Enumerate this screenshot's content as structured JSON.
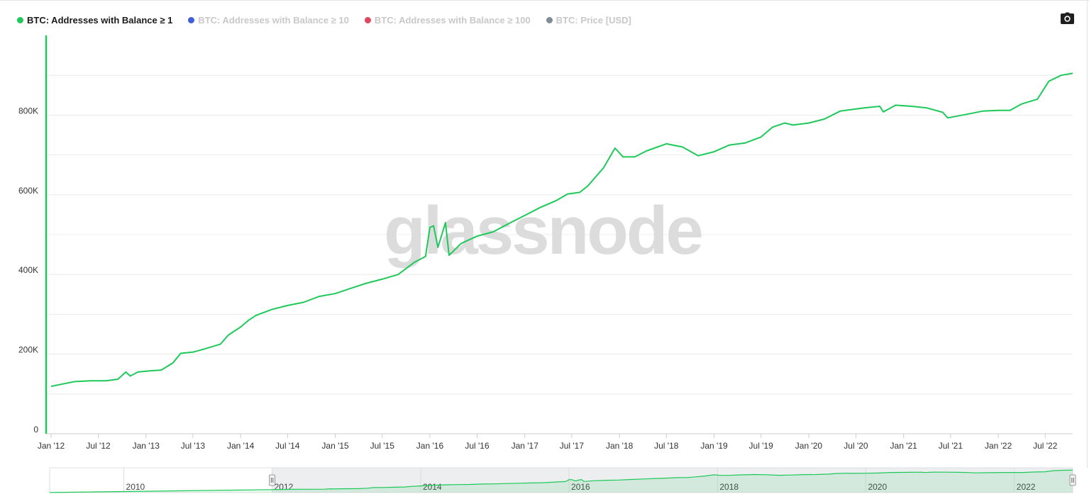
{
  "watermark": "glassnode",
  "legend": [
    {
      "label": "BTC: Addresses with Balance ≥ 1",
      "color": "#1ec95a",
      "active": true
    },
    {
      "label": "BTC: Addresses with Balance ≥ 10",
      "color": "#3e5fd6",
      "active": false
    },
    {
      "label": "BTC: Addresses with Balance ≥ 100",
      "color": "#e0475e",
      "active": false
    },
    {
      "label": "BTC: Price [USD]",
      "color": "#7f8c97",
      "active": false
    }
  ],
  "icons": {
    "screenshot": "camera-icon"
  },
  "chart_data": {
    "type": "line",
    "series": [
      {
        "name": "BTC: Addresses with Balance ≥ 1",
        "color": "#1ec95a",
        "points": [
          [
            "2012-01-01",
            119000
          ],
          [
            "2012-02-15",
            125000
          ],
          [
            "2012-04-01",
            131000
          ],
          [
            "2012-06-01",
            133000
          ],
          [
            "2012-08-01",
            133000
          ],
          [
            "2012-09-15",
            137000
          ],
          [
            "2012-10-15",
            155000
          ],
          [
            "2012-11-01",
            145000
          ],
          [
            "2012-12-01",
            155000
          ],
          [
            "2013-01-15",
            158000
          ],
          [
            "2013-03-01",
            160000
          ],
          [
            "2013-04-15",
            178000
          ],
          [
            "2013-05-15",
            202000
          ],
          [
            "2013-07-01",
            205000
          ],
          [
            "2013-08-15",
            213000
          ],
          [
            "2013-10-15",
            225000
          ],
          [
            "2013-11-15",
            248000
          ],
          [
            "2014-01-01",
            268000
          ],
          [
            "2014-02-01",
            285000
          ],
          [
            "2014-03-01",
            297000
          ],
          [
            "2014-05-01",
            312000
          ],
          [
            "2014-07-01",
            322000
          ],
          [
            "2014-09-01",
            330000
          ],
          [
            "2014-11-01",
            345000
          ],
          [
            "2015-01-01",
            352000
          ],
          [
            "2015-03-01",
            365000
          ],
          [
            "2015-05-01",
            378000
          ],
          [
            "2015-07-01",
            388000
          ],
          [
            "2015-09-01",
            400000
          ],
          [
            "2015-11-01",
            430000
          ],
          [
            "2015-12-15",
            445000
          ],
          [
            "2016-01-01",
            518000
          ],
          [
            "2016-01-15",
            522000
          ],
          [
            "2016-02-01",
            468000
          ],
          [
            "2016-03-01",
            530000
          ],
          [
            "2016-03-15",
            448000
          ],
          [
            "2016-05-01",
            478000
          ],
          [
            "2016-07-01",
            496000
          ],
          [
            "2016-09-01",
            507000
          ],
          [
            "2016-11-01",
            528000
          ],
          [
            "2017-01-01",
            548000
          ],
          [
            "2017-03-01",
            568000
          ],
          [
            "2017-05-01",
            585000
          ],
          [
            "2017-06-15",
            602000
          ],
          [
            "2017-08-01",
            606000
          ],
          [
            "2017-09-01",
            622000
          ],
          [
            "2017-11-01",
            668000
          ],
          [
            "2017-12-15",
            717000
          ],
          [
            "2018-01-15",
            695000
          ],
          [
            "2018-03-01",
            695000
          ],
          [
            "2018-04-15",
            710000
          ],
          [
            "2018-07-01",
            728000
          ],
          [
            "2018-09-01",
            720000
          ],
          [
            "2018-11-01",
            698000
          ],
          [
            "2019-01-01",
            708000
          ],
          [
            "2019-03-01",
            725000
          ],
          [
            "2019-05-01",
            730000
          ],
          [
            "2019-07-01",
            745000
          ],
          [
            "2019-08-15",
            770000
          ],
          [
            "2019-10-01",
            780000
          ],
          [
            "2019-11-01",
            775000
          ],
          [
            "2020-01-01",
            780000
          ],
          [
            "2020-03-01",
            790000
          ],
          [
            "2020-05-01",
            810000
          ],
          [
            "2020-08-01",
            818000
          ],
          [
            "2020-10-01",
            822000
          ],
          [
            "2020-10-15",
            808000
          ],
          [
            "2020-12-01",
            825000
          ],
          [
            "2021-02-01",
            822000
          ],
          [
            "2021-04-01",
            818000
          ],
          [
            "2021-06-01",
            807000
          ],
          [
            "2021-06-20",
            793000
          ],
          [
            "2021-09-01",
            802000
          ],
          [
            "2021-11-01",
            810000
          ],
          [
            "2022-01-01",
            812000
          ],
          [
            "2022-02-15",
            812000
          ],
          [
            "2022-04-01",
            828000
          ],
          [
            "2022-06-01",
            840000
          ],
          [
            "2022-07-15",
            885000
          ],
          [
            "2022-09-01",
            900000
          ],
          [
            "2022-10-15",
            905000
          ]
        ]
      }
    ],
    "y_ticks": [
      "0",
      "200K",
      "400K",
      "600K",
      "800K"
    ],
    "y_tick_values": [
      0,
      200000,
      400000,
      600000,
      800000
    ],
    "ylim": [
      0,
      1000000
    ],
    "x_ticks": [
      "Jan '12",
      "Jul '12",
      "Jan '13",
      "Jul '13",
      "Jan '14",
      "Jul '14",
      "Jan '15",
      "Jul '15",
      "Jan '16",
      "Jul '16",
      "Jan '17",
      "Jul '17",
      "Jan '18",
      "Jul '18",
      "Jan '19",
      "Jul '19",
      "Jan '20",
      "Jul '20",
      "Jan '21",
      "Jul '21",
      "Jan '22",
      "Jul '22"
    ],
    "x_tick_dates": [
      "2012-01-01",
      "2012-07-01",
      "2013-01-01",
      "2013-07-01",
      "2014-01-01",
      "2014-07-01",
      "2015-01-01",
      "2015-07-01",
      "2016-01-01",
      "2016-07-01",
      "2017-01-01",
      "2017-07-01",
      "2018-01-01",
      "2018-07-01",
      "2019-01-01",
      "2019-07-01",
      "2020-01-01",
      "2020-07-01",
      "2021-01-01",
      "2021-07-01",
      "2022-01-01",
      "2022-07-01"
    ],
    "xlim": [
      "2012-01-01",
      "2022-10-15"
    ],
    "grid": true,
    "legend_position": "top-left",
    "navigator": {
      "x_ticks": [
        "2010",
        "2012",
        "2014",
        "2016",
        "2018",
        "2020",
        "2022"
      ],
      "x_tick_dates": [
        "2010-01-01",
        "2012-01-01",
        "2014-01-01",
        "2016-01-01",
        "2018-01-01",
        "2020-01-01",
        "2022-01-01"
      ],
      "xlim": [
        "2009-01-01",
        "2022-10-15"
      ],
      "selected_range": [
        "2012-01-01",
        "2022-10-15"
      ]
    }
  }
}
